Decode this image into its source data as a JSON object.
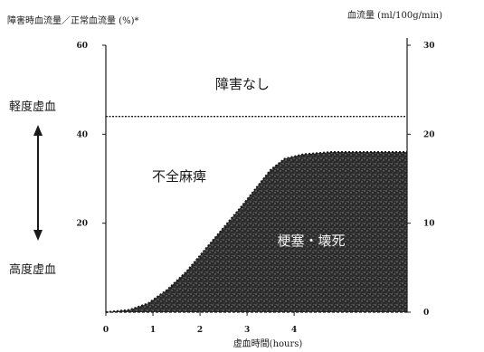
{
  "chart_data": {
    "type": "area",
    "ylabel_left": "障害時血流量／正常血流量 (%)*",
    "ylabel_right": "血流量 (ml/100g/min)",
    "xlabel": "虚血時間(hours)",
    "xlim": [
      0,
      6.4
    ],
    "ylim_left": [
      0,
      60
    ],
    "ylim_right": [
      0,
      30
    ],
    "x_ticks": [
      "0",
      "1",
      "2",
      "3",
      "4"
    ],
    "y_left_ticks": [
      {
        "value": 20,
        "label": "20"
      },
      {
        "value": 40,
        "label": "40"
      },
      {
        "value": 60,
        "label": "60"
      }
    ],
    "y_right_ticks": [
      {
        "value": 0,
        "label": "0"
      },
      {
        "value": 10,
        "label": "10"
      },
      {
        "value": 20,
        "label": "20"
      },
      {
        "value": 30,
        "label": "30"
      }
    ],
    "threshold_line": {
      "y": 44
    },
    "infarct_boundary": {
      "x": [
        0,
        0.5,
        0.9,
        1.3,
        1.7,
        2.1,
        2.5,
        2.9,
        3.2,
        3.5,
        3.8,
        4.2,
        4.8,
        5.4,
        6.4
      ],
      "y": [
        0,
        0.5,
        2,
        5,
        9,
        14,
        19,
        24,
        28,
        32,
        34.5,
        35.5,
        36,
        36,
        36
      ]
    },
    "annotations": {
      "no_damage": "障害なし",
      "incomplete": "不全麻痺",
      "infarct": "梗塞・壊死",
      "mild": "軽度虚血",
      "severe": "高度虚血"
    }
  }
}
